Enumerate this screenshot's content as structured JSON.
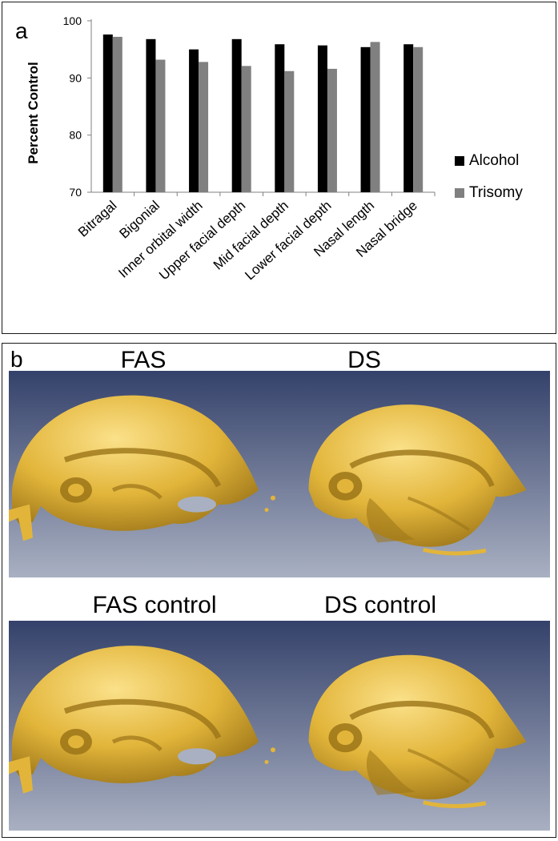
{
  "panel_a": {
    "letter": "a"
  },
  "panel_b": {
    "letter": "b"
  },
  "chart_data": {
    "type": "bar",
    "ylabel": "Percent Control",
    "xlabel": "",
    "ylim": [
      70,
      100
    ],
    "yticks": [
      70,
      80,
      90,
      100
    ],
    "categories": [
      "Bitragal",
      "Bigonial",
      "Inner orbital width",
      "Upper facial depth",
      "Mid facial depth",
      "Lower facial depth",
      "Nasal length",
      "Nasal bridge"
    ],
    "series": [
      {
        "name": "Alcohol",
        "values": [
          97.6,
          96.8,
          95.0,
          96.8,
          95.9,
          95.7,
          95.4,
          95.9
        ],
        "color": "#000000"
      },
      {
        "name": "Trisomy",
        "values": [
          97.2,
          93.2,
          92.8,
          92.1,
          91.2,
          91.6,
          96.3,
          95.4
        ],
        "color": "#808080"
      }
    ],
    "legend_position": "right",
    "grid": false
  },
  "scenes": [
    {
      "label": "FAS"
    },
    {
      "label": "DS"
    },
    {
      "label": "FAS control"
    },
    {
      "label": "DS control"
    }
  ],
  "colors": {
    "scene_top": "#34416a",
    "scene_bottom": "#a9b0c2",
    "skull": "#e2b53a",
    "skull_shadow": "#9b7418",
    "skull_highlight": "#fbe18a"
  }
}
